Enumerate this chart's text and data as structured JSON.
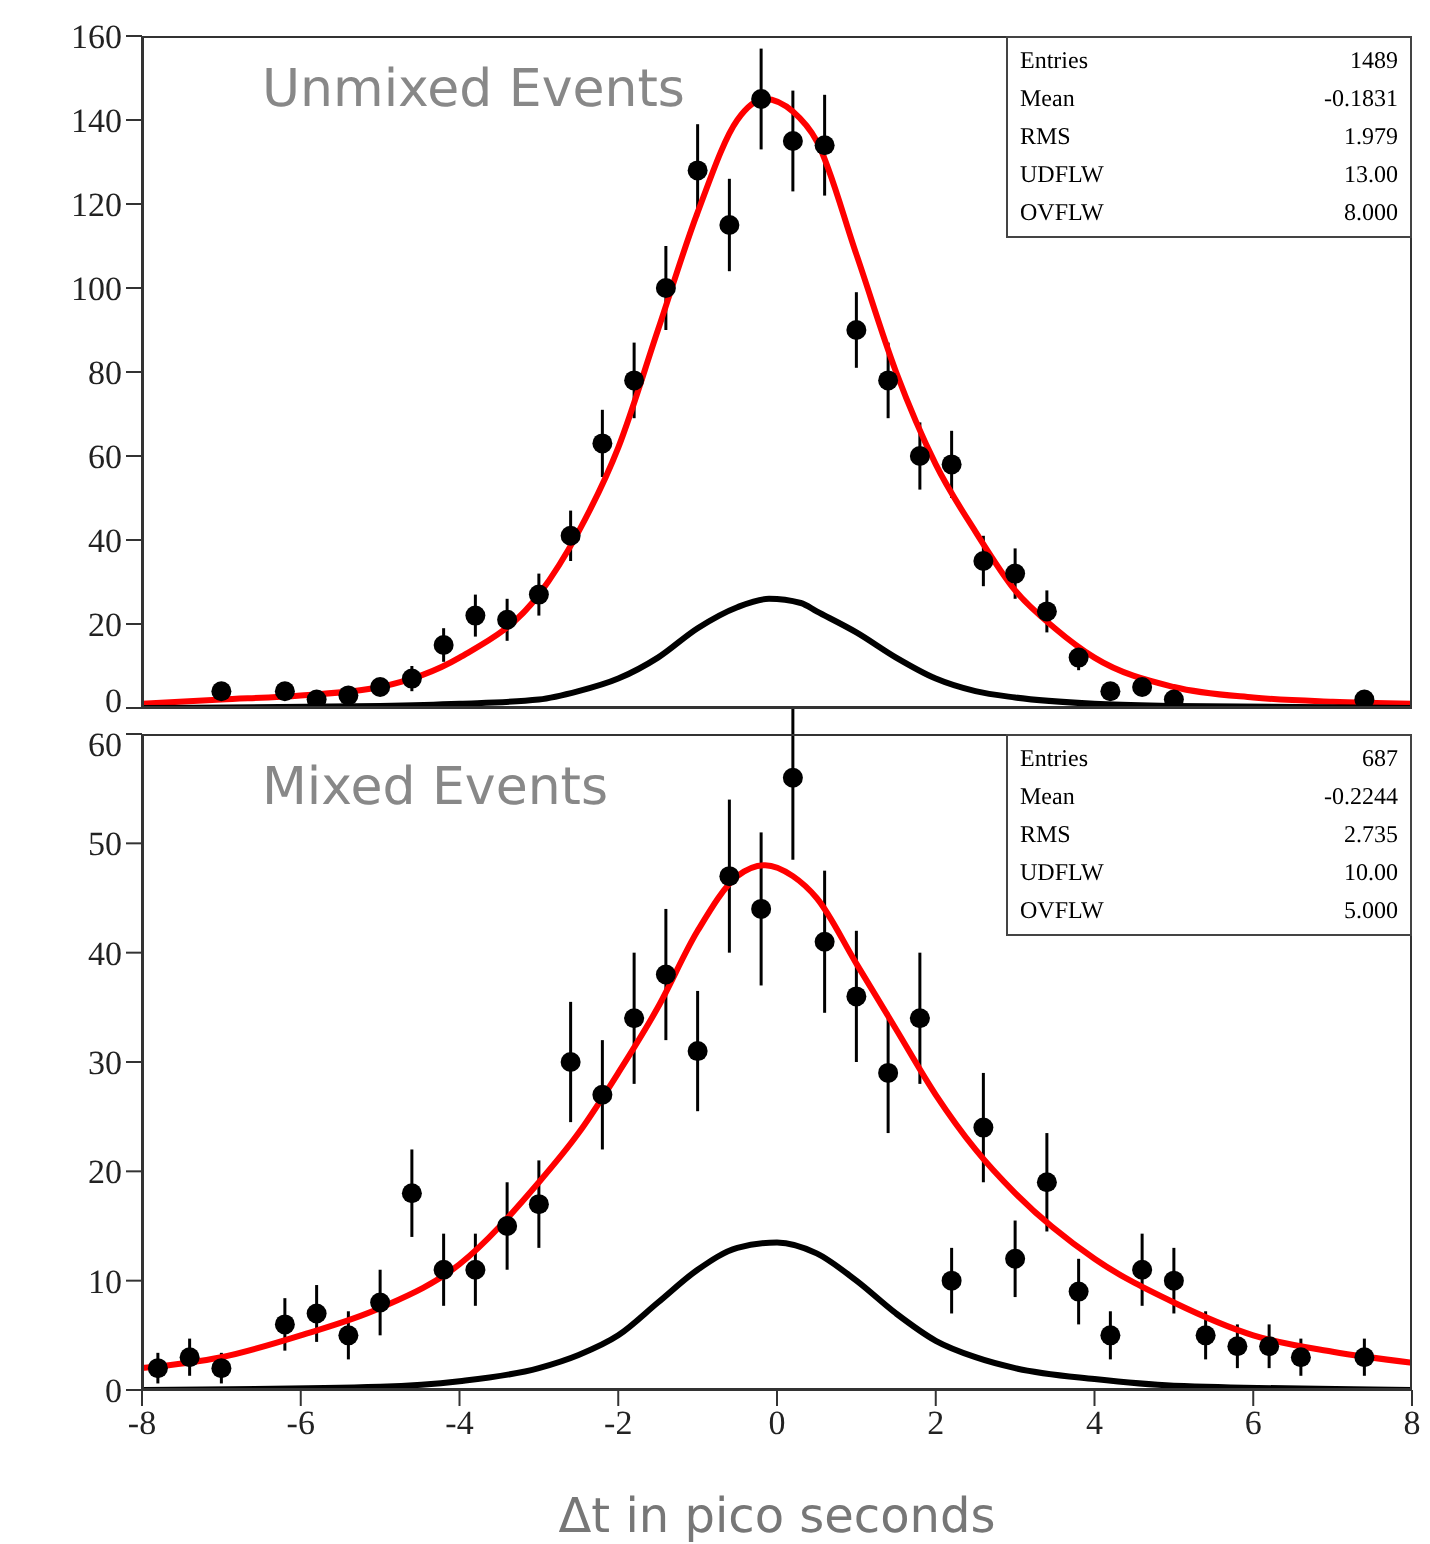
{
  "chart_data": [
    {
      "type": "scatter",
      "xlim": [
        -8,
        8
      ],
      "xticks": [
        -8,
        -6,
        -4,
        -2,
        0,
        2,
        4,
        6,
        8
      ],
      "ylim": [
        0,
        160
      ],
      "yticks": [
        0,
        20,
        40,
        60,
        80,
        100,
        120,
        140,
        160
      ],
      "tick_labels": "y",
      "annotations": [
        "Unmixed Events",
        "Entries",
        "1489",
        "Mean",
        "-0.1831",
        "RMS",
        "1.979",
        "UDFLW",
        "13.00",
        "OVFLW",
        "8.000"
      ],
      "series": [
        {
          "marker": "circle",
          "color": "#000000",
          "x": [
            -7,
            -6.2,
            -5.8,
            -5.4,
            -5.0,
            -4.6,
            -4.2,
            -3.8,
            -3.4,
            -3.0,
            -2.6,
            -2.2,
            -1.8,
            -1.4,
            -1.0,
            -0.6,
            -0.2,
            0.2,
            0.6,
            1.0,
            1.4,
            1.8,
            2.2,
            2.6,
            3.0,
            3.4,
            3.8,
            4.2,
            4.6,
            5.0,
            7.4
          ],
          "values": [
            4,
            4,
            2,
            3,
            5,
            7,
            15,
            22,
            21,
            27,
            41,
            63,
            78,
            100,
            128,
            115,
            145,
            135,
            134,
            90,
            78,
            60,
            58,
            35,
            32,
            23,
            12,
            4,
            5,
            2,
            2
          ],
          "errors": [
            2,
            2,
            1,
            2,
            2,
            3,
            4,
            5,
            5,
            5,
            6,
            8,
            9,
            10,
            11,
            11,
            12,
            12,
            12,
            9,
            9,
            8,
            8,
            6,
            6,
            5,
            3,
            2,
            2,
            1,
            1
          ]
        },
        {
          "type": "line",
          "color": "#ff0000",
          "x": [
            -8,
            -7,
            -6,
            -5,
            -4,
            -3,
            -2.5,
            -2,
            -1.5,
            -1,
            -0.5,
            -0.15,
            0.2,
            0.5,
            1,
            1.5,
            2,
            2.5,
            3,
            3.5,
            4,
            5,
            6,
            7,
            8
          ],
          "values": [
            1,
            2,
            3,
            5,
            12,
            27,
            42,
            62,
            90,
            118,
            140,
            145,
            142,
            135,
            108,
            80,
            58,
            42,
            28,
            19,
            12,
            5,
            2.5,
            1.5,
            1
          ]
        },
        {
          "type": "line",
          "color": "#000000",
          "x": [
            -8,
            -5,
            -4,
            -3,
            -2.5,
            -2,
            -1.5,
            -1,
            -0.5,
            -0.1,
            0.3,
            0.5,
            1,
            1.5,
            2,
            2.5,
            3,
            4,
            5,
            8
          ],
          "values": [
            0,
            0.5,
            1,
            2,
            4,
            7,
            12,
            19,
            24,
            26,
            25,
            23,
            18,
            12,
            7,
            4,
            2.5,
            1,
            0.5,
            0
          ]
        }
      ]
    },
    {
      "type": "scatter",
      "xlim": [
        -8,
        8
      ],
      "xticks": [
        -8,
        -6,
        -4,
        -2,
        0,
        2,
        4,
        6,
        8
      ],
      "ylim": [
        0,
        60
      ],
      "yticks": [
        0,
        10,
        20,
        30,
        40,
        50,
        60
      ],
      "xlabel": "Δt in pico seconds",
      "annotations": [
        "Mixed Events",
        "Entries",
        "687",
        "Mean",
        "-0.2244",
        "RMS",
        "2.735",
        "UDFLW",
        "10.00",
        "OVFLW",
        "5.000"
      ],
      "series": [
        {
          "marker": "circle",
          "color": "#000000",
          "x": [
            -7.8,
            -7.4,
            -7.0,
            -6.2,
            -5.8,
            -5.4,
            -5.0,
            -4.6,
            -4.2,
            -3.8,
            -3.4,
            -3.0,
            -2.6,
            -2.2,
            -1.8,
            -1.4,
            -1.0,
            -0.6,
            -0.2,
            0.2,
            0.6,
            1.0,
            1.4,
            1.8,
            2.2,
            2.6,
            3.0,
            3.4,
            3.8,
            4.2,
            4.6,
            5.0,
            5.4,
            5.8,
            6.2,
            6.6,
            7.4
          ],
          "values": [
            2,
            3,
            2,
            6,
            7,
            5,
            8,
            18,
            11,
            11,
            15,
            17,
            30,
            27,
            34,
            38,
            31,
            47,
            44,
            56,
            41,
            36,
            29,
            34,
            10,
            24,
            12,
            19,
            9,
            5,
            11,
            10,
            5,
            4,
            4,
            3,
            3
          ],
          "errors": [
            1.4,
            1.7,
            1.4,
            2.4,
            2.6,
            2.2,
            3,
            4,
            3.3,
            3.3,
            4,
            4,
            5.5,
            5,
            6,
            6,
            5.5,
            7,
            7,
            7.5,
            6.5,
            6,
            5.5,
            6,
            3,
            5,
            3.5,
            4.5,
            3,
            2.2,
            3.3,
            3,
            2.2,
            2,
            2,
            1.7,
            1.7
          ]
        },
        {
          "type": "line",
          "color": "#ff0000",
          "x": [
            -8,
            -7,
            -6,
            -5,
            -4,
            -3,
            -2.5,
            -2,
            -1.5,
            -1,
            -0.5,
            -0.15,
            0.2,
            0.5,
            1,
            1.5,
            2,
            2.5,
            3,
            4,
            5,
            6,
            7,
            8
          ],
          "values": [
            2,
            3,
            5,
            7.5,
            11.5,
            19,
            23.5,
            29,
            35,
            42,
            47,
            48,
            47,
            45,
            39,
            33,
            27,
            22,
            18,
            12,
            8,
            5,
            3.5,
            2.5
          ]
        },
        {
          "type": "line",
          "color": "#000000",
          "x": [
            -8,
            -5,
            -4,
            -3,
            -2.5,
            -2,
            -1.5,
            -1,
            -0.5,
            0,
            0.5,
            1,
            1.5,
            2,
            2.5,
            3,
            4,
            5,
            8
          ],
          "values": [
            0,
            0.3,
            0.8,
            2,
            3.2,
            5,
            8,
            11,
            13,
            13.5,
            12.5,
            10,
            7,
            4.5,
            3,
            2,
            1,
            0.4,
            0
          ]
        }
      ]
    }
  ]
}
